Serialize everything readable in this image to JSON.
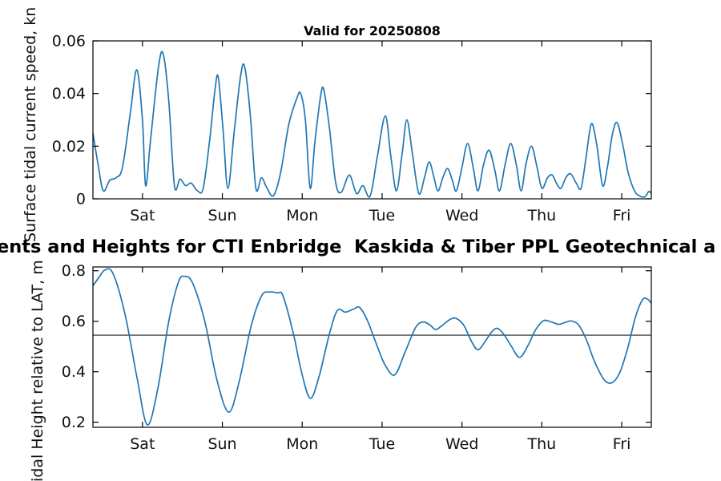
{
  "figure": {
    "suptitle": "ents and Heights for CTI Enbridge  Kaskida & Tiber PPL Geotechnical a",
    "background": "#ffffff",
    "axis_color": "#000000",
    "text_color": "#111111"
  },
  "chart_data": [
    {
      "id": "surface-current-speed",
      "type": "line",
      "title": "Valid for 20250808",
      "ylabel": "Surface tidal current speed, kn",
      "xlabel": "",
      "grid": false,
      "legend": "none",
      "line_color": "#1f77b4",
      "xlim_days": [
        0,
        6.99
      ],
      "ylim": [
        0,
        0.06
      ],
      "xticks": [
        {
          "d": 0.62,
          "label": "Sat"
        },
        {
          "d": 1.62,
          "label": "Sun"
        },
        {
          "d": 2.62,
          "label": "Mon"
        },
        {
          "d": 3.62,
          "label": "Tue"
        },
        {
          "d": 4.62,
          "label": "Wed"
        },
        {
          "d": 5.62,
          "label": "Thu"
        },
        {
          "d": 6.62,
          "label": "Fri"
        }
      ],
      "yticks": [
        {
          "v": 0,
          "label": "0"
        },
        {
          "v": 0.02,
          "label": "0.02"
        },
        {
          "v": 0.04,
          "label": "0.04"
        },
        {
          "v": 0.06,
          "label": "0.06"
        }
      ],
      "series": [
        {
          "name": "surface tidal current speed",
          "color": "#1f77b4",
          "points": [
            [
              0.0,
              0.025
            ],
            [
              0.07,
              0.012
            ],
            [
              0.13,
              0.003
            ],
            [
              0.21,
              0.007
            ],
            [
              0.29,
              0.008
            ],
            [
              0.37,
              0.012
            ],
            [
              0.47,
              0.033
            ],
            [
              0.55,
              0.049
            ],
            [
              0.62,
              0.03
            ],
            [
              0.66,
              0.005
            ],
            [
              0.72,
              0.022
            ],
            [
              0.82,
              0.05
            ],
            [
              0.88,
              0.055
            ],
            [
              0.95,
              0.037
            ],
            [
              1.02,
              0.005
            ],
            [
              1.09,
              0.0075
            ],
            [
              1.16,
              0.005
            ],
            [
              1.23,
              0.006
            ],
            [
              1.31,
              0.003
            ],
            [
              1.38,
              0.004
            ],
            [
              1.46,
              0.022
            ],
            [
              1.53,
              0.042
            ],
            [
              1.57,
              0.046
            ],
            [
              1.63,
              0.026
            ],
            [
              1.69,
              0.004
            ],
            [
              1.77,
              0.026
            ],
            [
              1.85,
              0.047
            ],
            [
              1.9,
              0.05
            ],
            [
              1.97,
              0.032
            ],
            [
              2.04,
              0.004
            ],
            [
              2.11,
              0.008
            ],
            [
              2.18,
              0.004
            ],
            [
              2.26,
              0.0012
            ],
            [
              2.35,
              0.01
            ],
            [
              2.45,
              0.028
            ],
            [
              2.55,
              0.038
            ],
            [
              2.6,
              0.04
            ],
            [
              2.66,
              0.03
            ],
            [
              2.72,
              0.004
            ],
            [
              2.78,
              0.022
            ],
            [
              2.85,
              0.039
            ],
            [
              2.89,
              0.0415
            ],
            [
              2.96,
              0.027
            ],
            [
              3.04,
              0.006
            ],
            [
              3.11,
              0.0025
            ],
            [
              3.21,
              0.009
            ],
            [
              3.3,
              0.002
            ],
            [
              3.38,
              0.005
            ],
            [
              3.47,
              0.001
            ],
            [
              3.56,
              0.016
            ],
            [
              3.66,
              0.0315
            ],
            [
              3.73,
              0.016
            ],
            [
              3.8,
              0.003
            ],
            [
              3.87,
              0.017
            ],
            [
              3.93,
              0.03
            ],
            [
              4.0,
              0.017
            ],
            [
              4.08,
              0.002
            ],
            [
              4.15,
              0.008
            ],
            [
              4.21,
              0.014
            ],
            [
              4.27,
              0.008
            ],
            [
              4.32,
              0.003
            ],
            [
              4.38,
              0.008
            ],
            [
              4.44,
              0.0115
            ],
            [
              4.5,
              0.007
            ],
            [
              4.55,
              0.003
            ],
            [
              4.62,
              0.012
            ],
            [
              4.69,
              0.021
            ],
            [
              4.76,
              0.012
            ],
            [
              4.82,
              0.003
            ],
            [
              4.89,
              0.013
            ],
            [
              4.96,
              0.0185
            ],
            [
              5.03,
              0.011
            ],
            [
              5.09,
              0.003
            ],
            [
              5.16,
              0.013
            ],
            [
              5.23,
              0.021
            ],
            [
              5.3,
              0.013
            ],
            [
              5.36,
              0.003
            ],
            [
              5.42,
              0.013
            ],
            [
              5.49,
              0.02
            ],
            [
              5.56,
              0.012
            ],
            [
              5.62,
              0.004
            ],
            [
              5.69,
              0.008
            ],
            [
              5.75,
              0.009
            ],
            [
              5.81,
              0.0055
            ],
            [
              5.86,
              0.004
            ],
            [
              5.92,
              0.008
            ],
            [
              5.98,
              0.0095
            ],
            [
              6.05,
              0.006
            ],
            [
              6.11,
              0.004
            ],
            [
              6.17,
              0.015
            ],
            [
              6.24,
              0.0285
            ],
            [
              6.31,
              0.02
            ],
            [
              6.38,
              0.005
            ],
            [
              6.44,
              0.012
            ],
            [
              6.5,
              0.024
            ],
            [
              6.56,
              0.029
            ],
            [
              6.63,
              0.021
            ],
            [
              6.7,
              0.01
            ],
            [
              6.78,
              0.003
            ],
            [
              6.85,
              0.001
            ],
            [
              6.91,
              0.0008
            ],
            [
              6.96,
              0.0028
            ],
            [
              6.99,
              0.002
            ]
          ]
        }
      ]
    },
    {
      "id": "tidal-height",
      "type": "line",
      "title": "",
      "ylabel": "Tidal Height relative to LAT, m",
      "xlabel": "",
      "grid": false,
      "legend": "none",
      "line_color": "#1f77b4",
      "reference_line": {
        "value": 0.545,
        "color": "#222222"
      },
      "xlim_days": [
        0,
        6.99
      ],
      "ylim": [
        0.18,
        0.815
      ],
      "xticks": [
        {
          "d": 0.62,
          "label": "Sat"
        },
        {
          "d": 1.62,
          "label": "Sun"
        },
        {
          "d": 2.62,
          "label": "Mon"
        },
        {
          "d": 3.62,
          "label": "Tue"
        },
        {
          "d": 4.62,
          "label": "Wed"
        },
        {
          "d": 5.62,
          "label": "Thu"
        },
        {
          "d": 6.62,
          "label": "Fri"
        }
      ],
      "yticks": [
        {
          "v": 0.2,
          "label": "0.2"
        },
        {
          "v": 0.4,
          "label": "0.4"
        },
        {
          "v": 0.6,
          "label": "0.6"
        },
        {
          "v": 0.8,
          "label": "0.8"
        }
      ],
      "series": [
        {
          "name": "tidal height",
          "color": "#1f77b4",
          "points": [
            [
              0.0,
              0.74
            ],
            [
              0.08,
              0.776
            ],
            [
              0.15,
              0.803
            ],
            [
              0.25,
              0.79
            ],
            [
              0.4,
              0.63
            ],
            [
              0.55,
              0.38
            ],
            [
              0.68,
              0.19
            ],
            [
              0.81,
              0.33
            ],
            [
              0.95,
              0.6
            ],
            [
              1.07,
              0.755
            ],
            [
              1.15,
              0.778
            ],
            [
              1.25,
              0.75
            ],
            [
              1.4,
              0.6
            ],
            [
              1.55,
              0.37
            ],
            [
              1.7,
              0.24
            ],
            [
              1.83,
              0.36
            ],
            [
              1.98,
              0.58
            ],
            [
              2.11,
              0.7
            ],
            [
              2.21,
              0.716
            ],
            [
              2.31,
              0.712
            ],
            [
              2.38,
              0.7
            ],
            [
              2.51,
              0.55
            ],
            [
              2.61,
              0.4
            ],
            [
              2.72,
              0.295
            ],
            [
              2.83,
              0.38
            ],
            [
              2.96,
              0.55
            ],
            [
              3.06,
              0.643
            ],
            [
              3.16,
              0.636
            ],
            [
              3.26,
              0.648
            ],
            [
              3.34,
              0.654
            ],
            [
              3.44,
              0.6
            ],
            [
              3.56,
              0.5
            ],
            [
              3.66,
              0.425
            ],
            [
              3.78,
              0.388
            ],
            [
              3.91,
              0.48
            ],
            [
              4.04,
              0.575
            ],
            [
              4.13,
              0.597
            ],
            [
              4.22,
              0.585
            ],
            [
              4.29,
              0.567
            ],
            [
              4.38,
              0.585
            ],
            [
              4.46,
              0.605
            ],
            [
              4.54,
              0.612
            ],
            [
              4.64,
              0.585
            ],
            [
              4.74,
              0.52
            ],
            [
              4.82,
              0.487
            ],
            [
              4.91,
              0.52
            ],
            [
              4.99,
              0.557
            ],
            [
              5.06,
              0.572
            ],
            [
              5.14,
              0.55
            ],
            [
              5.24,
              0.5
            ],
            [
              5.34,
              0.457
            ],
            [
              5.44,
              0.5
            ],
            [
              5.54,
              0.565
            ],
            [
              5.64,
              0.602
            ],
            [
              5.74,
              0.597
            ],
            [
              5.83,
              0.588
            ],
            [
              5.91,
              0.595
            ],
            [
              5.99,
              0.601
            ],
            [
              6.08,
              0.585
            ],
            [
              6.18,
              0.525
            ],
            [
              6.28,
              0.44
            ],
            [
              6.4,
              0.368
            ],
            [
              6.5,
              0.357
            ],
            [
              6.6,
              0.4
            ],
            [
              6.7,
              0.5
            ],
            [
              6.79,
              0.615
            ],
            [
              6.88,
              0.685
            ],
            [
              6.94,
              0.688
            ],
            [
              6.99,
              0.672
            ]
          ]
        }
      ]
    }
  ]
}
